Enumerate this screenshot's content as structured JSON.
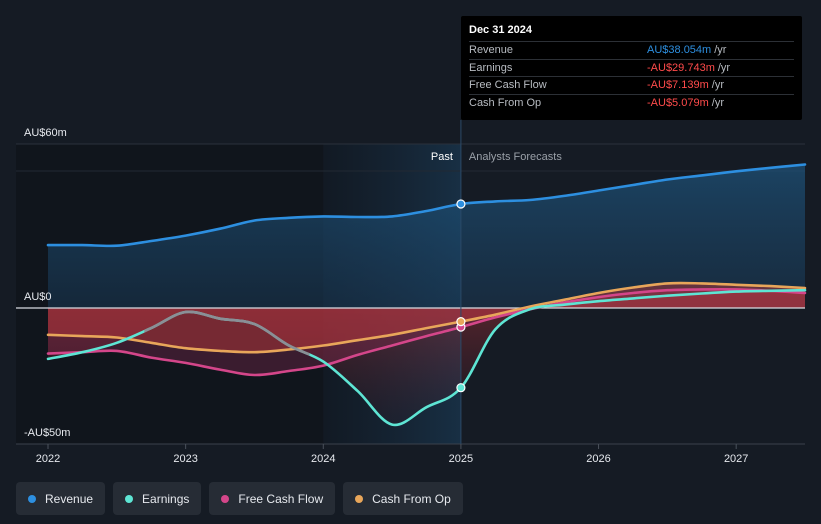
{
  "chart_data": {
    "type": "area",
    "y_axis": {
      "max_label": "AU$60m",
      "zero_label": "AU$0",
      "min_label": "-AU$50m",
      "ylim": [
        -50,
        60
      ]
    },
    "x_axis": {
      "ticks": [
        2022,
        2023,
        2024,
        2025,
        2026,
        2027
      ],
      "tick_labels": [
        "2022",
        "2023",
        "2024",
        "2025",
        "2026",
        "2027"
      ],
      "xlim": [
        2022,
        2027.5
      ]
    },
    "sections": {
      "past": "Past",
      "forecast": "Analysts Forecasts",
      "divider_x": 2025.0
    },
    "series": [
      {
        "name": "Revenue",
        "color": "#2d8fe0",
        "points": [
          [
            2022.0,
            23
          ],
          [
            2022.25,
            23
          ],
          [
            2022.5,
            22.8
          ],
          [
            2022.75,
            24.5
          ],
          [
            2023.0,
            26.5
          ],
          [
            2023.25,
            29
          ],
          [
            2023.5,
            32
          ],
          [
            2023.75,
            33
          ],
          [
            2024.0,
            33.5
          ],
          [
            2024.25,
            33.3
          ],
          [
            2024.5,
            33.5
          ],
          [
            2024.75,
            35.5
          ],
          [
            2025.0,
            38.05
          ],
          [
            2025.25,
            39
          ],
          [
            2025.5,
            39.5
          ],
          [
            2025.75,
            41
          ],
          [
            2026.0,
            43
          ],
          [
            2026.25,
            45
          ],
          [
            2026.5,
            47
          ],
          [
            2026.75,
            48.5
          ],
          [
            2027.0,
            50
          ],
          [
            2027.25,
            51.3
          ],
          [
            2027.5,
            52.5
          ]
        ]
      },
      {
        "name": "Earnings",
        "color": "#5ee5d4",
        "points": [
          [
            2022.0,
            -19
          ],
          [
            2022.25,
            -16.5
          ],
          [
            2022.5,
            -13
          ],
          [
            2022.75,
            -7.5
          ],
          [
            2023.0,
            -1.5
          ],
          [
            2023.25,
            -4
          ],
          [
            2023.5,
            -6
          ],
          [
            2023.75,
            -14
          ],
          [
            2024.0,
            -20
          ],
          [
            2024.25,
            -31
          ],
          [
            2024.5,
            -43.5
          ],
          [
            2024.75,
            -37
          ],
          [
            2025.0,
            -29.74
          ],
          [
            2025.25,
            -8
          ],
          [
            2025.5,
            -0.5
          ],
          [
            2025.75,
            1.2
          ],
          [
            2026.0,
            2.5
          ],
          [
            2026.25,
            3.5
          ],
          [
            2026.5,
            4.5
          ],
          [
            2026.75,
            5.3
          ],
          [
            2027.0,
            6
          ],
          [
            2027.25,
            6.3
          ],
          [
            2027.5,
            6.5
          ]
        ]
      },
      {
        "name": "Free Cash Flow",
        "color": "#d4468a",
        "points": [
          [
            2022.0,
            -17
          ],
          [
            2022.25,
            -16.5
          ],
          [
            2022.5,
            -16
          ],
          [
            2022.75,
            -18.5
          ],
          [
            2023.0,
            -20.5
          ],
          [
            2023.25,
            -23
          ],
          [
            2023.5,
            -25
          ],
          [
            2023.75,
            -23.5
          ],
          [
            2024.0,
            -21.5
          ],
          [
            2024.25,
            -17.5
          ],
          [
            2024.5,
            -14
          ],
          [
            2024.75,
            -10.5
          ],
          [
            2025.0,
            -7.14
          ],
          [
            2025.25,
            -3.5
          ],
          [
            2025.5,
            -0.5
          ],
          [
            2025.75,
            2
          ],
          [
            2026.0,
            4
          ],
          [
            2026.25,
            5.5
          ],
          [
            2026.5,
            6.5
          ],
          [
            2026.75,
            6.8
          ],
          [
            2027.0,
            6.8
          ],
          [
            2027.25,
            6.3
          ],
          [
            2027.5,
            5.5
          ]
        ]
      },
      {
        "name": "Cash From Op",
        "color": "#e8a65a",
        "points": [
          [
            2022.0,
            -10
          ],
          [
            2022.25,
            -10.5
          ],
          [
            2022.5,
            -11
          ],
          [
            2022.75,
            -13
          ],
          [
            2023.0,
            -15
          ],
          [
            2023.25,
            -16
          ],
          [
            2023.5,
            -16.5
          ],
          [
            2023.75,
            -15.5
          ],
          [
            2024.0,
            -14
          ],
          [
            2024.25,
            -12
          ],
          [
            2024.5,
            -10
          ],
          [
            2024.75,
            -7.5
          ],
          [
            2025.0,
            -5.08
          ],
          [
            2025.25,
            -2.5
          ],
          [
            2025.5,
            0.5
          ],
          [
            2025.75,
            3
          ],
          [
            2026.0,
            5.5
          ],
          [
            2026.25,
            7.5
          ],
          [
            2026.5,
            9
          ],
          [
            2026.75,
            9
          ],
          [
            2027.0,
            8.5
          ],
          [
            2027.25,
            8
          ],
          [
            2027.5,
            7.3
          ]
        ]
      }
    ],
    "highlight_x": 2025.0
  },
  "tooltip": {
    "date": "Dec 31 2024",
    "rows": [
      {
        "name": "Revenue",
        "value": "AU$38.054m",
        "unit": "/yr",
        "color": "#2d8fe0"
      },
      {
        "name": "Earnings",
        "value": "-AU$29.743m",
        "unit": "/yr",
        "color": "#ff4b4b"
      },
      {
        "name": "Free Cash Flow",
        "value": "-AU$7.139m",
        "unit": "/yr",
        "color": "#ff4b4b"
      },
      {
        "name": "Cash From Op",
        "value": "-AU$5.079m",
        "unit": "/yr",
        "color": "#ff4b4b"
      }
    ]
  },
  "legend": [
    {
      "label": "Revenue",
      "color": "#2d8fe0"
    },
    {
      "label": "Earnings",
      "color": "#5ee5d4"
    },
    {
      "label": "Free Cash Flow",
      "color": "#d4468a"
    },
    {
      "label": "Cash From Op",
      "color": "#e8a65a"
    }
  ]
}
